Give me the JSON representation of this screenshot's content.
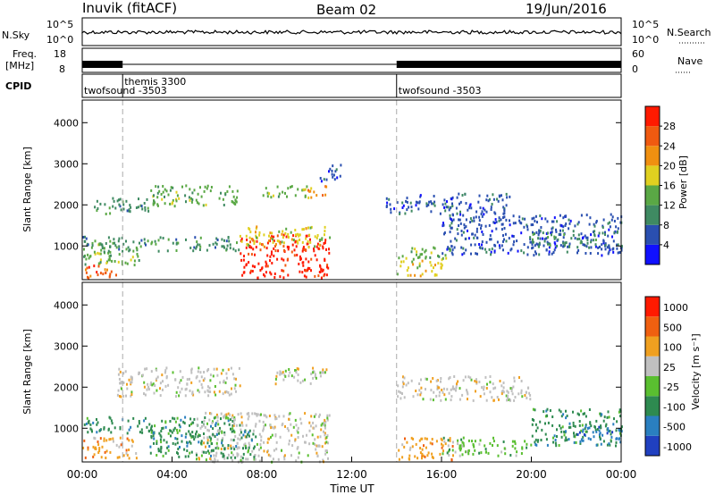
{
  "header": {
    "station": "Inuvik (fitACF)",
    "beam": "Beam 02",
    "date": "19/Jun/2016"
  },
  "top_panels": {
    "nsky_label": "N.Sky",
    "nsky_ticks": [
      "10^5",
      "10^0"
    ],
    "nsearch_ticks": [
      "10^5",
      "10^0"
    ],
    "nsearch_label": "N.Search",
    "freq_label_1": "Freq.",
    "freq_label_2": "[MHz]",
    "freq_ticks": [
      "18",
      "8"
    ],
    "nave_ticks": [
      "60",
      "0"
    ],
    "nave_label": "Nave",
    "cpid_label": "CPID",
    "cpid_segments": [
      {
        "label": "twofsound -3503",
        "start_hour": 0.0
      },
      {
        "label": "themis 3300",
        "start_hour": 1.8
      },
      {
        "label": "twofsound -3503",
        "start_hour": 14.0
      }
    ],
    "freq_band_gap_hours": [
      1.8,
      14.0
    ]
  },
  "axes": {
    "slant_range_label": "Slant Range [km]",
    "range_ticks": [
      "1000",
      "2000",
      "3000",
      "4000"
    ],
    "time_ticks": [
      "00:00",
      "04:00",
      "08:00",
      "12:00",
      "16:00",
      "20:00",
      "00:00"
    ],
    "time_label": "Time UT"
  },
  "colorbars": {
    "power": {
      "label": "Power [dB]",
      "ticks": [
        "4",
        "8",
        "12",
        "16",
        "20",
        "24",
        "28"
      ],
      "colors": [
        "#1010ff",
        "#2a4fb0",
        "#3f8a62",
        "#5aa845",
        "#e0d020",
        "#f09010",
        "#f05a10",
        "#ff1a00"
      ]
    },
    "velocity": {
      "label": "Velocity [m s⁻¹]",
      "ticks": [
        "1000",
        "500",
        "100",
        "25",
        "-25",
        "-100",
        "-500",
        "-1000"
      ],
      "colors": [
        "#2040c0",
        "#2a7fc0",
        "#2e8a50",
        "#5abf30",
        "#c0c0c0",
        "#f0a020",
        "#f06010",
        "#ff1a00"
      ]
    }
  },
  "chart_data": {
    "type": "heatmap",
    "title": "Inuvik (fitACF) Beam 02",
    "xlabel": "Time UT",
    "ylabel": "Slant Range [km]",
    "xlim": [
      0,
      24
    ],
    "ylim": [
      180,
      4550
    ],
    "vertical_markers_hours": [
      1.8,
      14.0
    ],
    "power_regions": [
      {
        "t0": 0.0,
        "t1": 1.5,
        "r0": 200,
        "r1": 550,
        "level": 6
      },
      {
        "t0": 0.0,
        "t1": 2.5,
        "r0": 550,
        "r1": 1100,
        "level": 3
      },
      {
        "t0": 0.0,
        "t1": 7.0,
        "r0": 900,
        "r1": 1250,
        "level": 2
      },
      {
        "t0": 0.5,
        "t1": 3.0,
        "r0": 1800,
        "r1": 2200,
        "level": 2
      },
      {
        "t0": 3.0,
        "t1": 7.0,
        "r0": 2000,
        "r1": 2500,
        "level": 3
      },
      {
        "t0": 7.0,
        "t1": 11.0,
        "r0": 250,
        "r1": 1300,
        "level": 7
      },
      {
        "t0": 7.0,
        "t1": 11.0,
        "r0": 1000,
        "r1": 1500,
        "level": 4
      },
      {
        "t0": 8.0,
        "t1": 10.0,
        "r0": 2200,
        "r1": 2500,
        "level": 3
      },
      {
        "t0": 10.0,
        "t1": 11.0,
        "r0": 2200,
        "r1": 2500,
        "level": 5
      },
      {
        "t0": 10.5,
        "t1": 11.5,
        "r0": 2600,
        "r1": 3000,
        "level": 1
      },
      {
        "t0": 14.0,
        "t1": 16.0,
        "r0": 300,
        "r1": 700,
        "level": 4
      },
      {
        "t0": 14.0,
        "t1": 16.5,
        "r0": 700,
        "r1": 1000,
        "level": 3
      },
      {
        "t0": 13.5,
        "t1": 19.0,
        "r0": 1800,
        "r1": 2300,
        "level": 1
      },
      {
        "t0": 16.0,
        "t1": 24.0,
        "r0": 800,
        "r1": 1800,
        "level": 1
      },
      {
        "t0": 20.0,
        "t1": 24.0,
        "r0": 1000,
        "r1": 1400,
        "level": 2
      }
    ],
    "velocity_regions": [
      {
        "t0": 0.0,
        "t1": 2.5,
        "r0": 300,
        "r1": 800,
        "level": 5
      },
      {
        "t0": 0.0,
        "t1": 7.0,
        "r0": 900,
        "r1": 1300,
        "level": 2
      },
      {
        "t0": 1.5,
        "t1": 7.0,
        "r0": 1800,
        "r1": 2500,
        "level": 4
      },
      {
        "t0": 5.0,
        "t1": 11.0,
        "r0": 200,
        "r1": 1400,
        "level": 4
      },
      {
        "t0": 3.0,
        "t1": 8.0,
        "r0": 300,
        "r1": 1000,
        "level": 2
      },
      {
        "t0": 8.5,
        "t1": 10.5,
        "r0": 2100,
        "r1": 2500,
        "level": 4
      },
      {
        "t0": 10.0,
        "t1": 11.0,
        "r0": 2200,
        "r1": 2500,
        "level": 4
      },
      {
        "t0": 14.0,
        "t1": 16.5,
        "r0": 250,
        "r1": 800,
        "level": 5
      },
      {
        "t0": 16.0,
        "t1": 20.0,
        "r0": 350,
        "r1": 800,
        "level": 3
      },
      {
        "t0": 14.0,
        "t1": 20.0,
        "r0": 1700,
        "r1": 2300,
        "level": 4
      },
      {
        "t0": 20.0,
        "t1": 24.0,
        "r0": 600,
        "r1": 1500,
        "level": 2
      },
      {
        "t0": 22.0,
        "t1": 24.0,
        "r0": 700,
        "r1": 1100,
        "level": 1
      }
    ]
  }
}
